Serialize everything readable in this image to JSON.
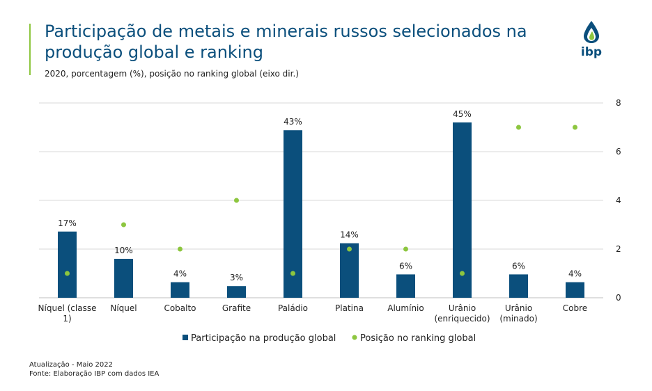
{
  "header": {
    "title": "Participação de metais e minerais russos selecionados na produção global e ranking",
    "subtitle": "2020, porcentagem (%), posição no ranking global (eixo dir.)",
    "logo_text": "ibp"
  },
  "colors": {
    "bar": "#0b4f7c",
    "dot": "#8dc63f",
    "title": "#0b4f7c",
    "accent": "#8dc63f",
    "grid": "#d9d9d9"
  },
  "chart_data": {
    "type": "bar",
    "categories": [
      [
        "Níquel (classe",
        "1)"
      ],
      [
        "Níquel"
      ],
      [
        "Cobalto"
      ],
      [
        "Grafite"
      ],
      [
        "Paládio"
      ],
      [
        "Platina"
      ],
      [
        "Alumínio"
      ],
      [
        "Urânio",
        "(enriquecido)"
      ],
      [
        "Urânio",
        "(minado)"
      ],
      [
        "Cobre"
      ]
    ],
    "series": [
      {
        "name": "Participação na produção global",
        "type": "bar",
        "axis": "left",
        "values": [
          17,
          10,
          4,
          3,
          43,
          14,
          6,
          45,
          6,
          4
        ],
        "labels": [
          "17%",
          "10%",
          "4%",
          "3%",
          "43%",
          "14%",
          "6%",
          "45%",
          "6%",
          "4%"
        ]
      },
      {
        "name": "Posição no ranking global",
        "type": "scatter",
        "axis": "right",
        "values": [
          1,
          3,
          2,
          4,
          1,
          2,
          2,
          1,
          7,
          7
        ]
      }
    ],
    "y_left_range": [
      0,
      50
    ],
    "y_right_range": [
      0,
      8
    ],
    "y_right_ticks": [
      "0",
      "2",
      "4",
      "6",
      "8"
    ],
    "grid": true,
    "legend_position": "bottom"
  },
  "footer": {
    "update": "Atualização - Maio 2022",
    "source": "Fonte: Elaboração IBP com dados IEA"
  }
}
